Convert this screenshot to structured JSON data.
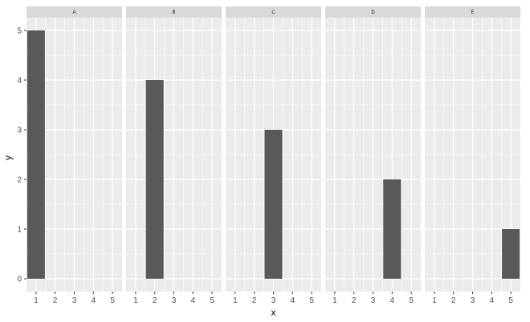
{
  "chart_data": {
    "type": "bar",
    "facet": "column",
    "xlabel": "x",
    "ylabel": "y",
    "xlim": [
      0.5,
      5.5
    ],
    "ylim": [
      0,
      5
    ],
    "x_ticks": [
      1,
      2,
      3,
      4,
      5
    ],
    "y_ticks": [
      0,
      1,
      2,
      3,
      4,
      5
    ],
    "grid": true,
    "legend": "none",
    "colors": {
      "bar": "#595959",
      "panel": "#ebebeb",
      "strip": "#d9d9d9",
      "grid": "#ffffff"
    },
    "panels": [
      {
        "label": "A",
        "x": [
          1
        ],
        "y": [
          5
        ]
      },
      {
        "label": "B",
        "x": [
          2
        ],
        "y": [
          4
        ]
      },
      {
        "label": "C",
        "x": [
          3
        ],
        "y": [
          3
        ]
      },
      {
        "label": "D",
        "x": [
          4
        ],
        "y": [
          2
        ]
      },
      {
        "label": "E",
        "x": [
          5
        ],
        "y": [
          1
        ]
      }
    ]
  }
}
